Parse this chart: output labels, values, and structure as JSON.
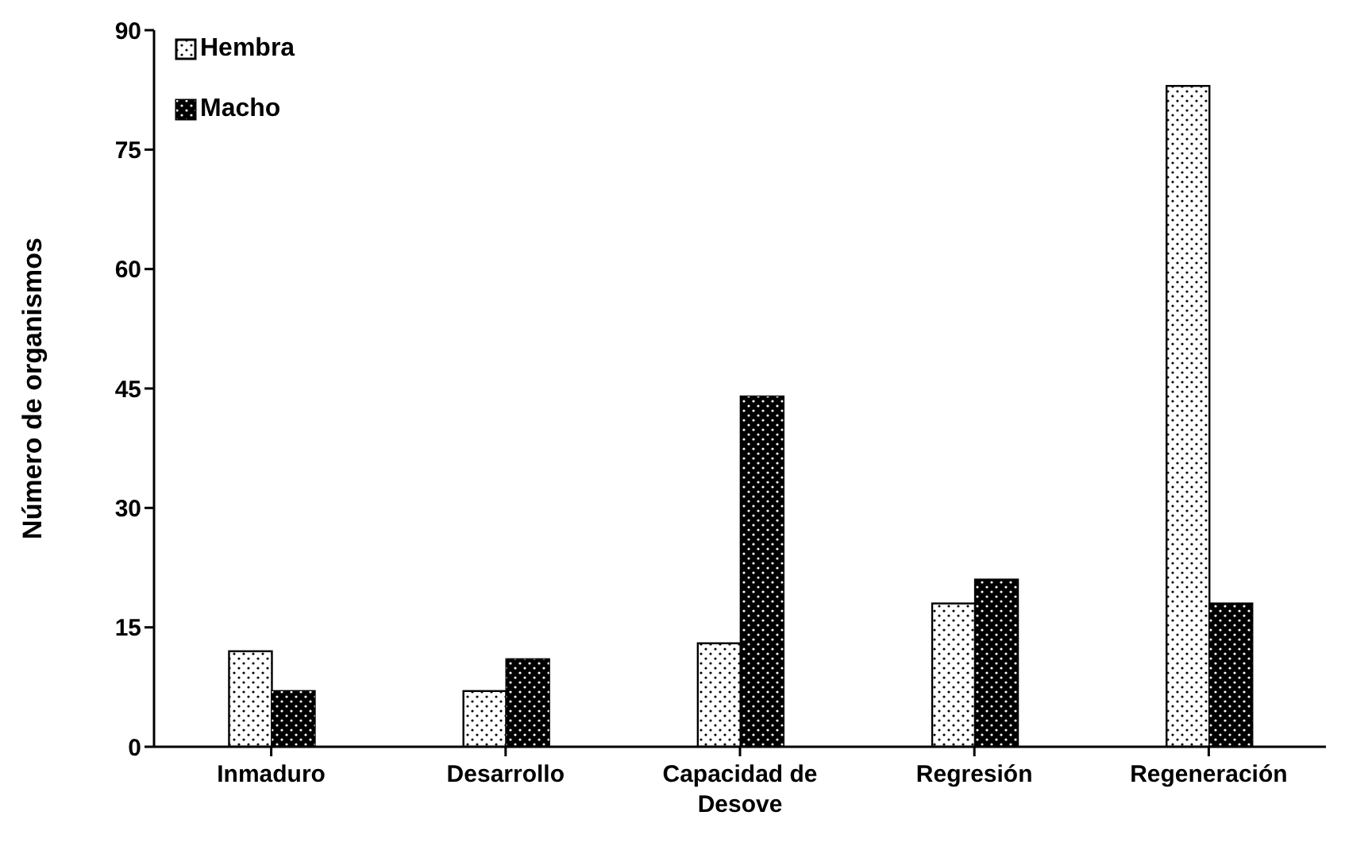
{
  "chart_data": {
    "type": "bar",
    "ylabel": "Número de organismos",
    "categories": [
      "Inmaduro",
      "Desarrollo",
      "Capacidad de Desove",
      "Regresión",
      "Regeneración"
    ],
    "series": [
      {
        "name": "Hembra",
        "color": "#ffffff",
        "values": [
          12,
          7,
          13,
          18,
          83
        ]
      },
      {
        "name": "Macho",
        "color": "#000000",
        "values": [
          7,
          11,
          44,
          21,
          18
        ]
      }
    ],
    "ylim": [
      0,
      90
    ],
    "yticks": [
      0,
      15,
      30,
      45,
      60,
      75,
      90
    ],
    "grid": false,
    "legend": "top left"
  }
}
